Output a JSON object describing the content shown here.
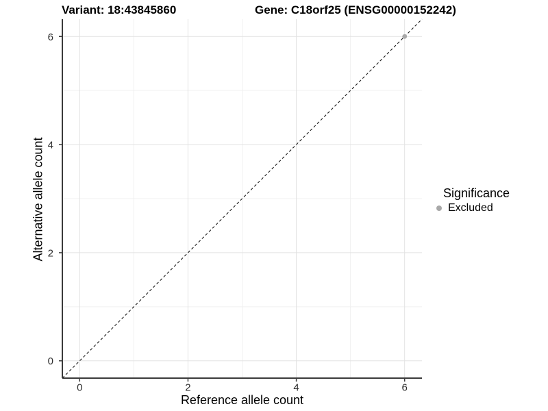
{
  "colors": {
    "background": "#ffffff",
    "grid_major": "#e2e2e2",
    "grid_minor": "#f0f0f0",
    "axis_line": "#3a3a3a",
    "tick_mark": "#3a3a3a",
    "tick_label": "#2e2e2e",
    "reference_line": "#1a1a1a",
    "point": "#a8a8a8"
  },
  "chart_data": {
    "type": "scatter",
    "titles": [
      "Variant: 18:43845860",
      "Gene: C18orf25 (ENSG00000152242)"
    ],
    "xlabel": "Reference allele count",
    "ylabel": "Alternative allele count",
    "xlim": [
      -0.32,
      6.32
    ],
    "ylim": [
      -0.32,
      6.32
    ],
    "x_ticks": [
      0,
      2,
      4,
      6
    ],
    "y_ticks": [
      0,
      2,
      4,
      6
    ],
    "x_minor_ticks": [
      1,
      3,
      5
    ],
    "y_minor_ticks": [
      1,
      3,
      5
    ],
    "grid": "major and minor gridlines on white panel",
    "reference_line": {
      "equation": "y = x",
      "style": "dashed",
      "color": "#1a1a1a"
    },
    "series": [
      {
        "name": "Excluded",
        "marker": "circle",
        "color": "#a8a8a8",
        "points": [
          {
            "x": 6,
            "y": 6
          }
        ]
      }
    ],
    "legend": {
      "title": "Significance",
      "position": "right",
      "items": [
        {
          "label": "Excluded",
          "color": "#a8a8a8",
          "marker": "circle"
        }
      ]
    }
  }
}
